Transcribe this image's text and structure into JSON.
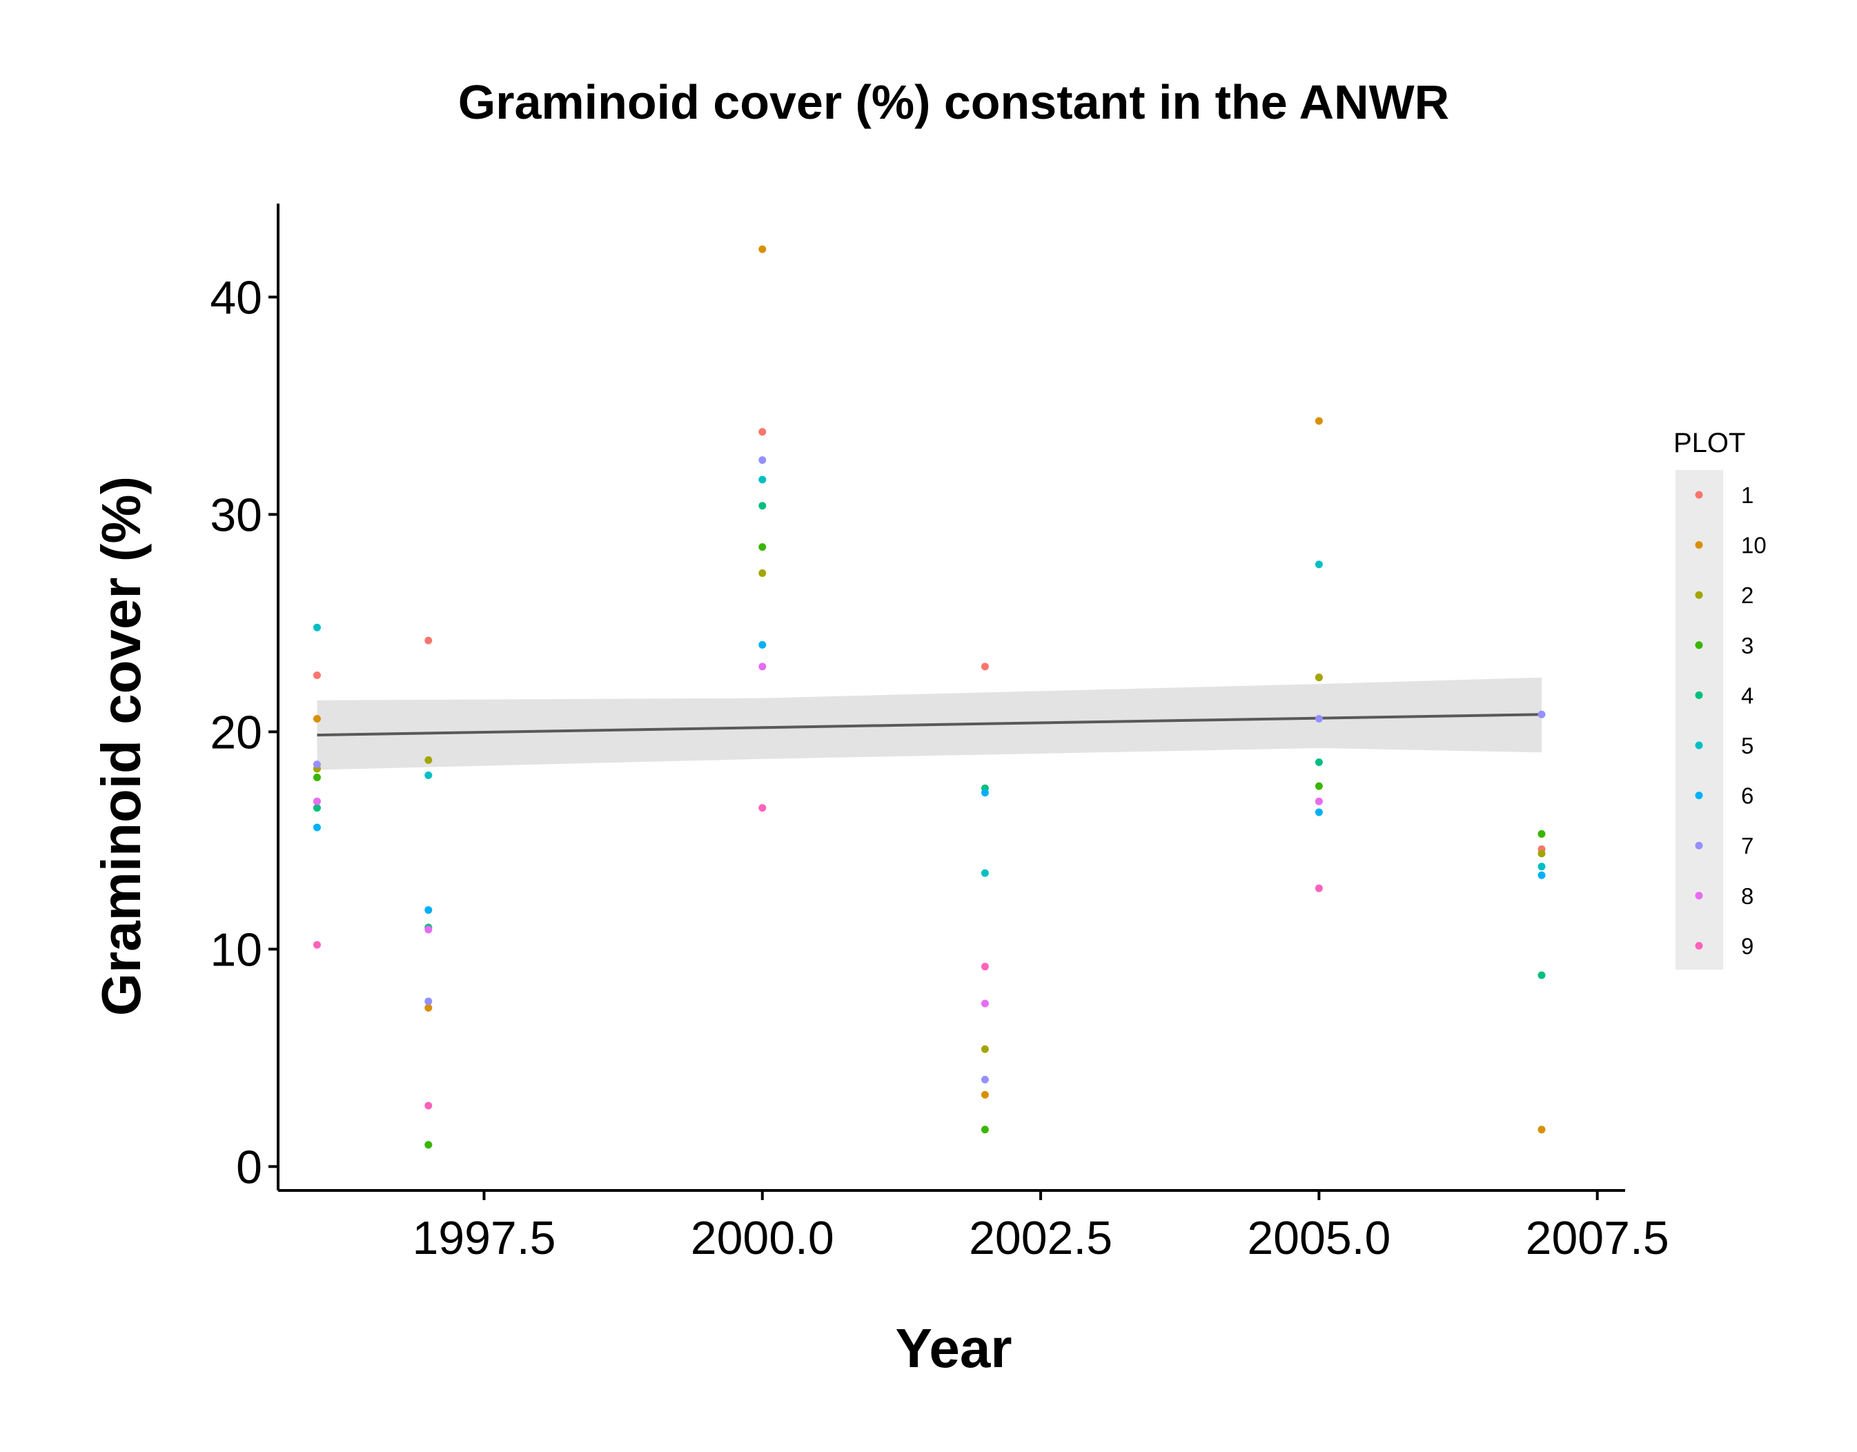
{
  "chart_data": {
    "type": "scatter",
    "title": "Graminoid cover (%) constant in the ANWR",
    "xlabel": "Year",
    "ylabel": "Graminoid cover (%)",
    "xlim": [
      1995.65,
      2007.75
    ],
    "ylim": [
      -1.1,
      44.3
    ],
    "x_ticks": [
      {
        "value": 1997.5,
        "label": "1997.5"
      },
      {
        "value": 2000.0,
        "label": "2000.0"
      },
      {
        "value": 2002.5,
        "label": "2002.5"
      },
      {
        "value": 2005.0,
        "label": "2005.0"
      },
      {
        "value": 2007.5,
        "label": "2007.5"
      }
    ],
    "y_ticks": [
      {
        "value": 0,
        "label": "0"
      },
      {
        "value": 10,
        "label": "10"
      },
      {
        "value": 20,
        "label": "20"
      },
      {
        "value": 30,
        "label": "30"
      },
      {
        "value": 40,
        "label": "40"
      }
    ],
    "grid": false,
    "legend": {
      "title": "PLOT",
      "position": "right",
      "entries": [
        "1",
        "10",
        "2",
        "3",
        "4",
        "5",
        "6",
        "7",
        "8",
        "9"
      ]
    },
    "series": [
      {
        "name": "1",
        "color": "#F8766D",
        "points": [
          [
            1996,
            22.6
          ],
          [
            1997,
            24.2
          ],
          [
            2000,
            33.8
          ],
          [
            2002,
            23.0
          ],
          [
            2005,
            22.5
          ],
          [
            2007,
            14.6
          ]
        ]
      },
      {
        "name": "10",
        "color": "#D89000",
        "points": [
          [
            1996,
            20.6
          ],
          [
            1997,
            7.3
          ],
          [
            2000,
            42.2
          ],
          [
            2002,
            3.3
          ],
          [
            2005,
            34.3
          ],
          [
            2007,
            1.7
          ]
        ]
      },
      {
        "name": "2",
        "color": "#A3A500",
        "points": [
          [
            1996,
            18.3
          ],
          [
            1997,
            18.7
          ],
          [
            2000,
            27.3
          ],
          [
            2002,
            5.4
          ],
          [
            2005,
            22.5
          ],
          [
            2007,
            14.4
          ]
        ]
      },
      {
        "name": "3",
        "color": "#39B600",
        "points": [
          [
            1996,
            17.9
          ],
          [
            1997,
            1.0
          ],
          [
            2000,
            28.5
          ],
          [
            2002,
            1.7
          ],
          [
            2005,
            17.5
          ],
          [
            2007,
            15.3
          ]
        ]
      },
      {
        "name": "4",
        "color": "#00BF7D",
        "points": [
          [
            1996,
            16.5
          ],
          [
            1997,
            11.0
          ],
          [
            2000,
            30.4
          ],
          [
            2002,
            17.4
          ],
          [
            2005,
            18.6
          ],
          [
            2007,
            8.8
          ]
        ]
      },
      {
        "name": "5",
        "color": "#00BFC4",
        "points": [
          [
            1996,
            24.8
          ],
          [
            1997,
            18.0
          ],
          [
            2000,
            31.6
          ],
          [
            2002,
            13.5
          ],
          [
            2005,
            27.7
          ],
          [
            2007,
            13.8
          ]
        ]
      },
      {
        "name": "6",
        "color": "#00B0F6",
        "points": [
          [
            1996,
            15.6
          ],
          [
            1997,
            11.8
          ],
          [
            2000,
            24.0
          ],
          [
            2002,
            17.2
          ],
          [
            2005,
            16.3
          ],
          [
            2007,
            13.4
          ]
        ]
      },
      {
        "name": "7",
        "color": "#9590FF",
        "points": [
          [
            1996,
            18.5
          ],
          [
            1997,
            7.6
          ],
          [
            2000,
            32.5
          ],
          [
            2002,
            4.0
          ],
          [
            2005,
            20.6
          ],
          [
            2007,
            20.8
          ]
        ]
      },
      {
        "name": "8",
        "color": "#E76BF3",
        "points": [
          [
            1996,
            16.8
          ],
          [
            1997,
            10.9
          ],
          [
            2000,
            23.0
          ],
          [
            2002,
            7.5
          ],
          [
            2005,
            16.8
          ]
        ]
      },
      {
        "name": "9",
        "color": "#FF62BC",
        "points": [
          [
            1996,
            10.2
          ],
          [
            1997,
            2.8
          ],
          [
            2000,
            16.5
          ],
          [
            2002,
            9.2
          ],
          [
            2005,
            12.8
          ]
        ]
      }
    ],
    "trend": {
      "color": "#595959",
      "band_color": "#E3E3E3",
      "points": [
        [
          1996,
          19.85
        ],
        [
          2007,
          20.8
        ]
      ],
      "band": [
        [
          1996,
          18.25,
          21.45
        ],
        [
          2000,
          18.75,
          21.55
        ],
        [
          2005,
          19.25,
          22.2
        ],
        [
          2007,
          19.05,
          22.5
        ]
      ]
    }
  }
}
